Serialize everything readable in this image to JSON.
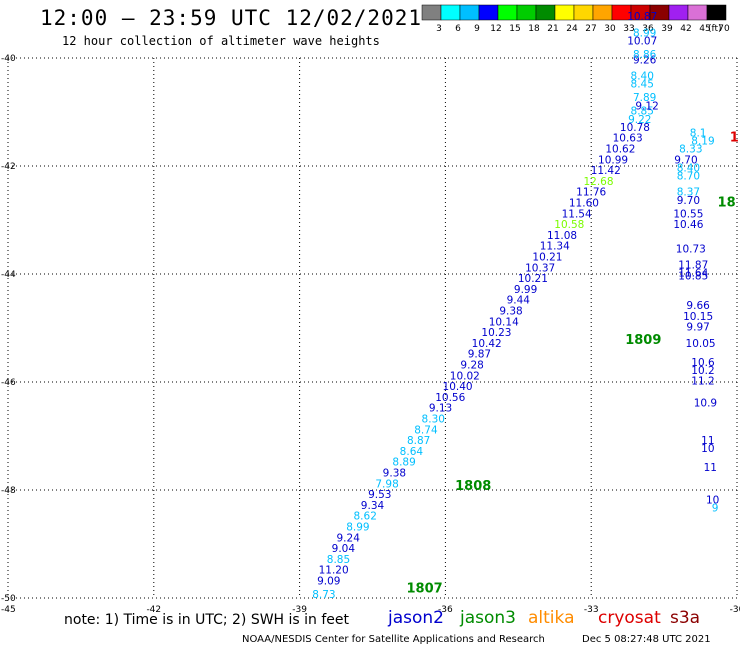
{
  "header": {
    "title": "12:00 – 23:59 UTC 12/02/2021",
    "subtitle": "12 hour collection of altimeter wave heights"
  },
  "legend": {
    "unit": "(ft)",
    "levels": [
      {
        "label": "3",
        "color": "#808080"
      },
      {
        "label": "6",
        "color": "#00ffff"
      },
      {
        "label": "9",
        "color": "#00bfff"
      },
      {
        "label": "12",
        "color": "#0000ff"
      },
      {
        "label": "15",
        "color": "#00ff00"
      },
      {
        "label": "18",
        "color": "#00cd00"
      },
      {
        "label": "21",
        "color": "#008b00"
      },
      {
        "label": "24",
        "color": "#ffff00"
      },
      {
        "label": "27",
        "color": "#ffd700"
      },
      {
        "label": "30",
        "color": "#ffa500"
      },
      {
        "label": "33",
        "color": "#ff0000"
      },
      {
        "label": "36",
        "color": "#cd0000"
      },
      {
        "label": "39",
        "color": "#8b0000"
      },
      {
        "label": "42",
        "color": "#a020f0"
      },
      {
        "label": "45",
        "color": "#da70d6"
      },
      {
        "label": "70",
        "color": "#000000"
      }
    ]
  },
  "footer": {
    "note": "note: 1) Time is in UTC; 2) SWH is in feet",
    "satellites": [
      {
        "name": "jason2",
        "color": "#0000cd"
      },
      {
        "name": "jason3",
        "color": "#008b00"
      },
      {
        "name": "altika",
        "color": "#ff8c00"
      },
      {
        "name": "cryosat",
        "color": "#dd0000"
      },
      {
        "name": "s3a",
        "color": "#8b0000"
      }
    ],
    "credit": "NOAA/NESDIS Center for Satellite Applications and Research",
    "generated": "Dec  5 08:27:48 UTC 2021"
  },
  "chart_data": {
    "type": "scatter",
    "xlim": [
      -45,
      -30
    ],
    "ylim": [
      -50,
      -40
    ],
    "x_ticks": [
      "-45",
      "-42",
      "-39",
      "-36",
      "-33",
      "-30"
    ],
    "y_ticks": [
      "-40",
      "-42",
      "-44",
      "-46",
      "-48",
      "-50"
    ],
    "grid": true,
    "time_labels": [
      {
        "x": -36.8,
        "y": -49.9,
        "text": "1807",
        "color": "#008b00"
      },
      {
        "x": -35.8,
        "y": -48.0,
        "text": "1808",
        "color": "#008b00"
      },
      {
        "x": -32.3,
        "y": -45.3,
        "text": "1809",
        "color": "#008b00"
      },
      {
        "x": -30.4,
        "y": -42.75,
        "text": "18",
        "color": "#008b00"
      },
      {
        "x": -30.15,
        "y": -41.55,
        "text": "1.",
        "color": "#dd0000"
      }
    ],
    "series": [
      {
        "name": "jason2",
        "points": [
          {
            "x": -38.5,
            "y": -50.0,
            "v": "8.73",
            "c": "#00bfff"
          },
          {
            "x": -38.4,
            "y": -49.75,
            "v": "9.09",
            "c": "#0000cd"
          },
          {
            "x": -38.3,
            "y": -49.55,
            "v": "11.20",
            "c": "#0000cd"
          },
          {
            "x": -38.2,
            "y": -49.35,
            "v": "8.85",
            "c": "#00bfff"
          },
          {
            "x": -38.1,
            "y": -49.15,
            "v": "9.04",
            "c": "#0000cd"
          },
          {
            "x": -38.0,
            "y": -48.95,
            "v": "9.24",
            "c": "#0000cd"
          },
          {
            "x": -37.8,
            "y": -48.75,
            "v": "8.99",
            "c": "#00bfff"
          },
          {
            "x": -37.65,
            "y": -48.55,
            "v": "8.62",
            "c": "#00bfff"
          },
          {
            "x": -37.5,
            "y": -48.35,
            "v": "9.34",
            "c": "#0000cd"
          },
          {
            "x": -37.35,
            "y": -48.15,
            "v": "9.53",
            "c": "#0000cd"
          },
          {
            "x": -37.2,
            "y": -47.95,
            "v": "7.98",
            "c": "#00bfff"
          },
          {
            "x": -37.05,
            "y": -47.75,
            "v": "9.38",
            "c": "#0000cd"
          },
          {
            "x": -36.85,
            "y": -47.55,
            "v": "8.89",
            "c": "#00bfff"
          },
          {
            "x": -36.7,
            "y": -47.35,
            "v": "8.64",
            "c": "#00bfff"
          },
          {
            "x": -36.55,
            "y": -47.15,
            "v": "8.87",
            "c": "#00bfff"
          },
          {
            "x": -36.4,
            "y": -46.95,
            "v": "8.74",
            "c": "#00bfff"
          },
          {
            "x": -36.25,
            "y": -46.75,
            "v": "8.30",
            "c": "#00bfff"
          },
          {
            "x": -36.1,
            "y": -46.55,
            "v": "9.13",
            "c": "#0000cd"
          },
          {
            "x": -35.9,
            "y": -46.35,
            "v": "10.56",
            "c": "#0000cd"
          },
          {
            "x": -35.75,
            "y": -46.15,
            "v": "10.40",
            "c": "#0000cd"
          },
          {
            "x": -35.6,
            "y": -45.95,
            "v": "10.02",
            "c": "#0000cd"
          },
          {
            "x": -35.45,
            "y": -45.75,
            "v": "9.28",
            "c": "#0000cd"
          },
          {
            "x": -35.3,
            "y": -45.55,
            "v": "9.87",
            "c": "#0000cd"
          },
          {
            "x": -35.15,
            "y": -45.35,
            "v": "10.42",
            "c": "#0000cd"
          },
          {
            "x": -34.95,
            "y": -45.15,
            "v": "10.23",
            "c": "#0000cd"
          },
          {
            "x": -34.8,
            "y": -44.95,
            "v": "10.14",
            "c": "#0000cd"
          },
          {
            "x": -34.65,
            "y": -44.75,
            "v": "9.38",
            "c": "#0000cd"
          },
          {
            "x": -34.5,
            "y": -44.55,
            "v": "9.44",
            "c": "#0000cd"
          },
          {
            "x": -34.35,
            "y": -44.35,
            "v": "9.99",
            "c": "#0000cd"
          },
          {
            "x": -34.2,
            "y": -44.15,
            "v": "10.21",
            "c": "#0000cd"
          },
          {
            "x": -34.05,
            "y": -43.95,
            "v": "10.37",
            "c": "#0000cd"
          },
          {
            "x": -33.9,
            "y": -43.75,
            "v": "10.21",
            "c": "#0000cd"
          },
          {
            "x": -33.75,
            "y": -43.55,
            "v": "11.34",
            "c": "#0000cd"
          },
          {
            "x": -33.6,
            "y": -43.35,
            "v": "11.08",
            "c": "#0000cd"
          },
          {
            "x": -33.45,
            "y": -43.15,
            "v": "10.58",
            "c": "#7CFC00"
          },
          {
            "x": -33.3,
            "y": -42.95,
            "v": "11.54",
            "c": "#0000cd"
          },
          {
            "x": -33.15,
            "y": -42.75,
            "v": "11.60",
            "c": "#0000cd"
          },
          {
            "x": -33.0,
            "y": -42.55,
            "v": "11.76",
            "c": "#0000cd"
          },
          {
            "x": -32.85,
            "y": -42.35,
            "v": "12.68",
            "c": "#7CFC00"
          },
          {
            "x": -32.7,
            "y": -42.15,
            "v": "11.42",
            "c": "#0000cd"
          },
          {
            "x": -32.55,
            "y": -41.95,
            "v": "10.99",
            "c": "#0000cd"
          },
          {
            "x": -32.4,
            "y": -41.75,
            "v": "10.62",
            "c": "#0000cd"
          },
          {
            "x": -32.25,
            "y": -41.55,
            "v": "10.63",
            "c": "#0000cd"
          },
          {
            "x": -32.1,
            "y": -41.35,
            "v": "10.78",
            "c": "#0000cd"
          },
          {
            "x": -32.0,
            "y": -41.2,
            "v": "9.22",
            "c": "#00bfff"
          },
          {
            "x": -31.95,
            "y": -41.05,
            "v": "8.85",
            "c": "#00bfff"
          },
          {
            "x": -31.85,
            "y": -40.95,
            "v": "9.12",
            "c": "#0000cd"
          },
          {
            "x": -31.9,
            "y": -40.8,
            "v": "7.89",
            "c": "#00bfff"
          },
          {
            "x": -31.95,
            "y": -40.55,
            "v": "8.45",
            "c": "#00bfff"
          },
          {
            "x": -31.95,
            "y": -40.4,
            "v": "8.40",
            "c": "#00bfff"
          },
          {
            "x": -31.9,
            "y": -40.1,
            "v": "9.26",
            "c": "#0000cd"
          },
          {
            "x": -31.9,
            "y": -40.0,
            "v": "8.86",
            "c": "#00bfff"
          },
          {
            "x": -31.95,
            "y": -39.75,
            "v": "10.07",
            "c": "#0000cd"
          },
          {
            "x": -31.9,
            "y": -39.6,
            "v": "8.99",
            "c": "#00bfff"
          },
          {
            "x": -31.95,
            "y": -39.3,
            "v": "10.87",
            "c": "#0000cd"
          }
        ]
      },
      {
        "name": "jason3",
        "points": [
          {
            "x": -30.8,
            "y": -41.45,
            "v": "8.1",
            "c": "#00bfff"
          },
          {
            "x": -30.7,
            "y": -41.6,
            "v": "8.19",
            "c": "#00bfff"
          },
          {
            "x": -30.95,
            "y": -41.75,
            "v": "8.33",
            "c": "#00bfff"
          },
          {
            "x": -31.05,
            "y": -41.95,
            "v": "9.70",
            "c": "#0000cd"
          },
          {
            "x": -31.0,
            "y": -42.1,
            "v": "8.40",
            "c": "#00bfff"
          },
          {
            "x": -31.0,
            "y": -42.25,
            "v": "8.70",
            "c": "#00bfff"
          },
          {
            "x": -31.0,
            "y": -42.55,
            "v": "8.37",
            "c": "#00bfff"
          },
          {
            "x": -31.0,
            "y": -42.7,
            "v": "9.70",
            "c": "#0000cd"
          },
          {
            "x": -31.0,
            "y": -42.95,
            "v": "10.55",
            "c": "#0000cd"
          },
          {
            "x": -31.0,
            "y": -43.15,
            "v": "10.46",
            "c": "#0000cd"
          },
          {
            "x": -30.95,
            "y": -43.6,
            "v": "10.73",
            "c": "#0000cd"
          },
          {
            "x": -30.9,
            "y": -43.9,
            "v": "11.87",
            "c": "#0000cd"
          },
          {
            "x": -30.9,
            "y": -44.05,
            "v": "11.64",
            "c": "#0000cd"
          },
          {
            "x": -30.9,
            "y": -44.1,
            "v": "10.85",
            "c": "#0000cd"
          },
          {
            "x": -30.8,
            "y": -44.65,
            "v": "9.66",
            "c": "#0000cd"
          },
          {
            "x": -30.8,
            "y": -44.85,
            "v": "10.15",
            "c": "#0000cd"
          },
          {
            "x": -30.8,
            "y": -45.05,
            "v": "9.97",
            "c": "#0000cd"
          },
          {
            "x": -30.75,
            "y": -45.35,
            "v": "10.05",
            "c": "#0000cd"
          },
          {
            "x": -30.7,
            "y": -45.7,
            "v": "10.6",
            "c": "#0000cd"
          },
          {
            "x": -30.7,
            "y": -45.85,
            "v": "10.2",
            "c": "#0000cd"
          },
          {
            "x": -30.7,
            "y": -46.05,
            "v": "11.2",
            "c": "#0000cd"
          },
          {
            "x": -30.65,
            "y": -46.45,
            "v": "10.9",
            "c": "#0000cd"
          },
          {
            "x": -30.6,
            "y": -47.15,
            "v": "11",
            "c": "#0000cd"
          },
          {
            "x": -30.6,
            "y": -47.3,
            "v": "10",
            "c": "#0000cd"
          },
          {
            "x": -30.55,
            "y": -47.65,
            "v": "11",
            "c": "#0000cd"
          },
          {
            "x": -30.5,
            "y": -48.25,
            "v": "10",
            "c": "#0000cd"
          },
          {
            "x": -30.45,
            "y": -48.4,
            "v": "9",
            "c": "#00bfff"
          }
        ]
      }
    ]
  }
}
